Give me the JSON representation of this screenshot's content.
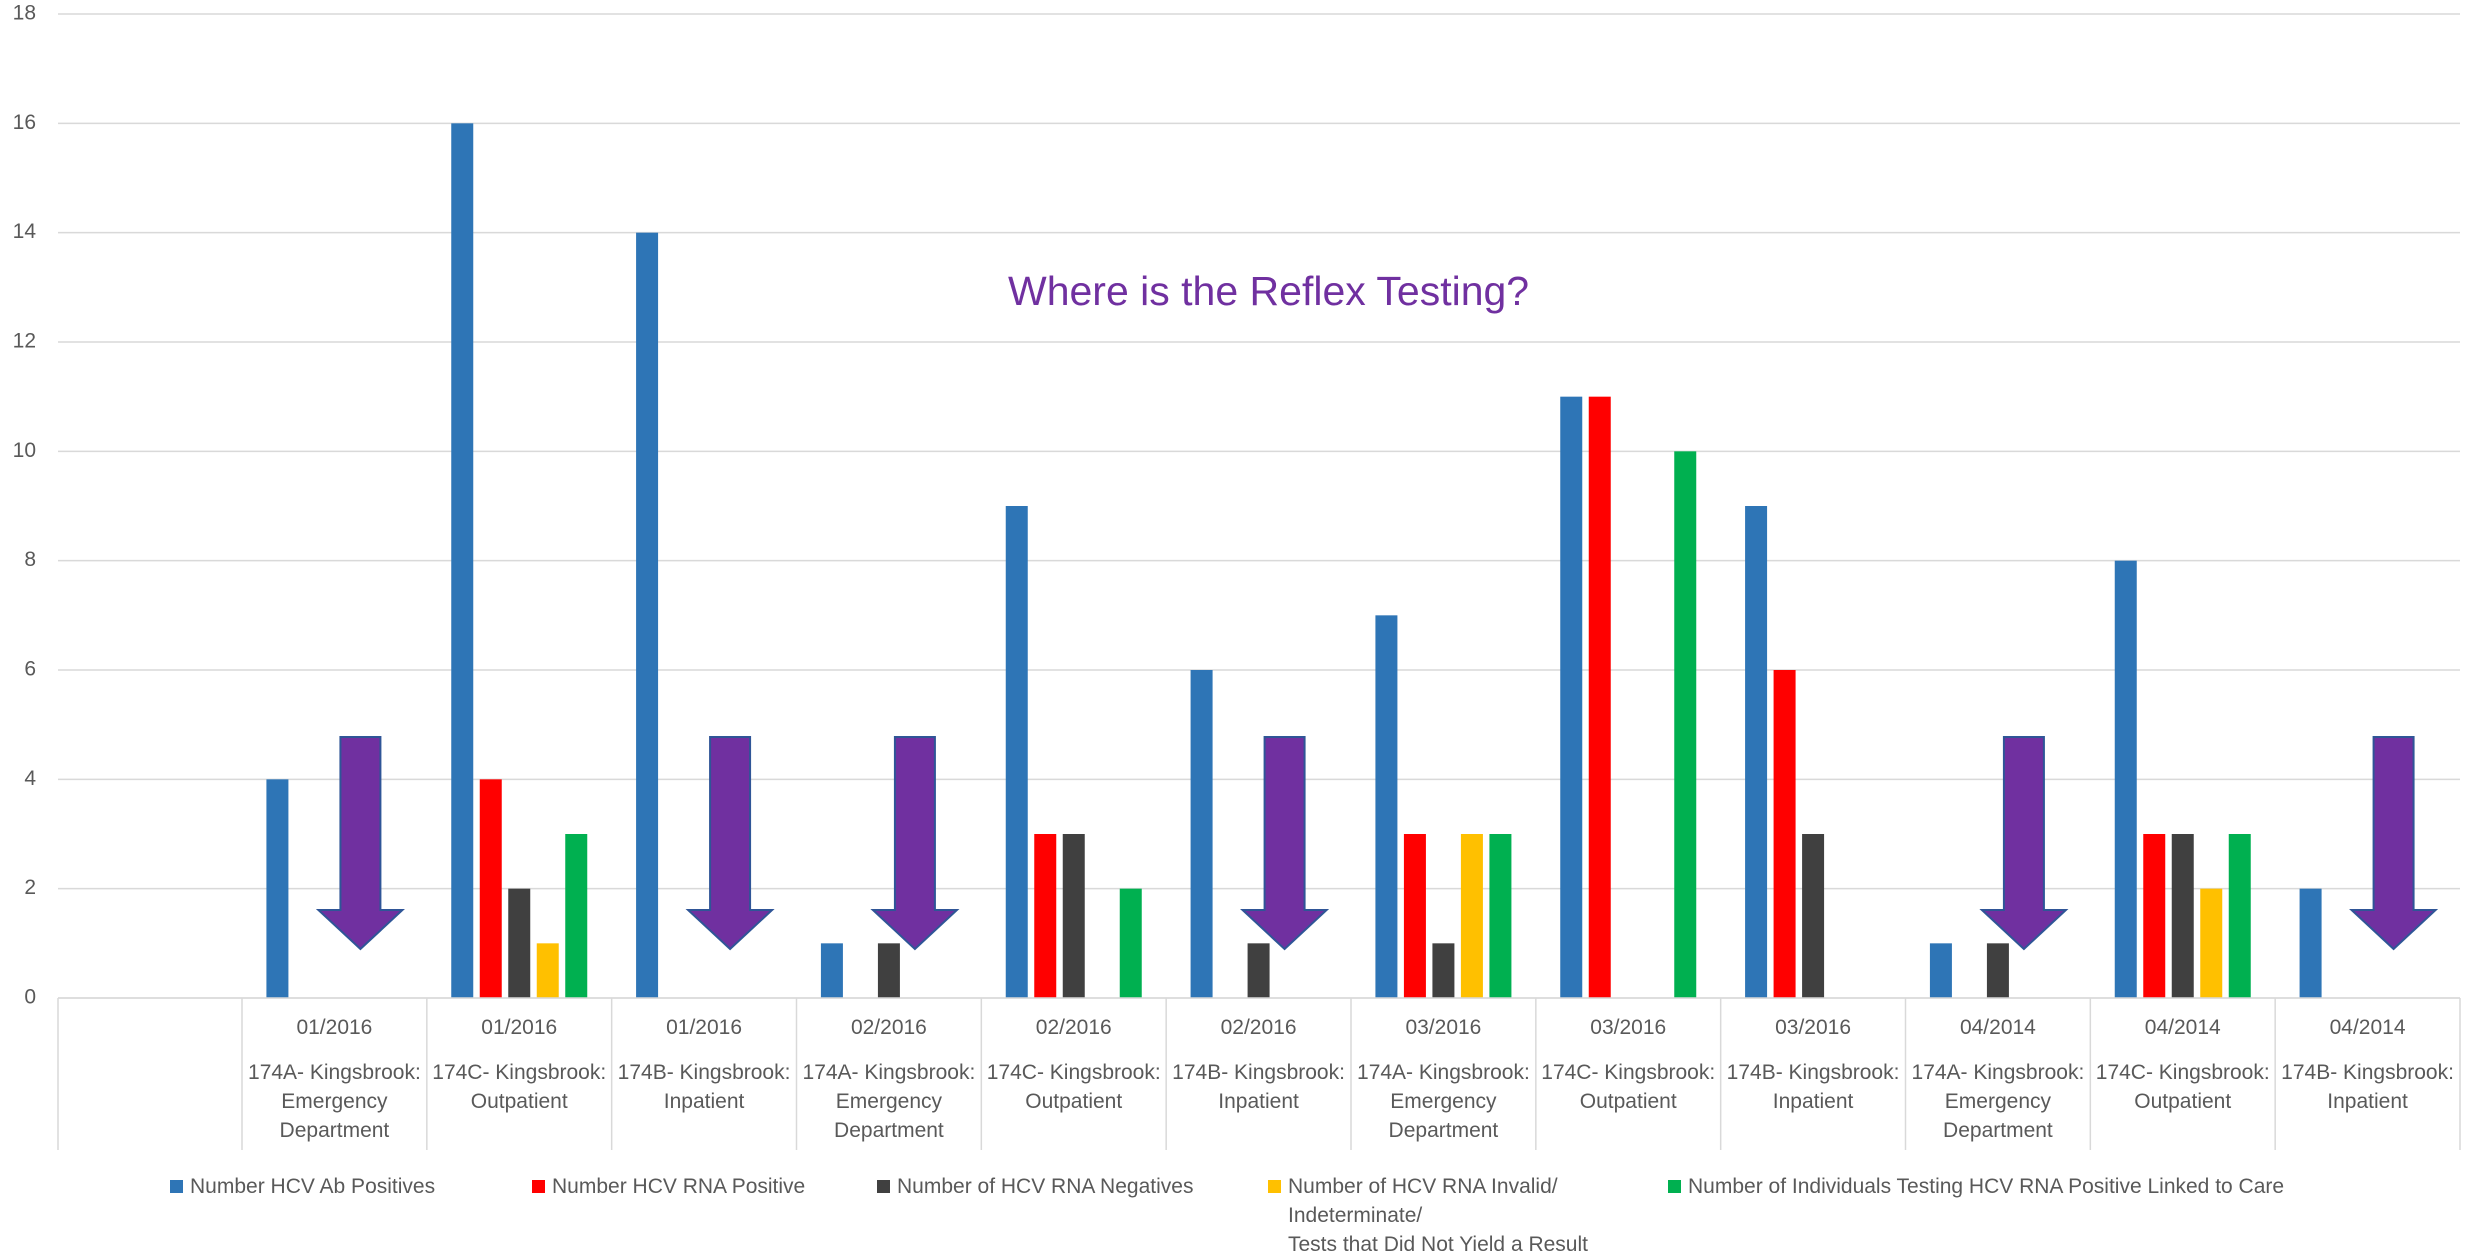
{
  "chart_data": {
    "type": "bar",
    "annotation": "Where is the Reflex Testing?",
    "categories": [
      {
        "date": "01/2016",
        "site": "174A- Kingsbrook: Emergency Department"
      },
      {
        "date": "01/2016",
        "site": "174C- Kingsbrook: Outpatient"
      },
      {
        "date": "01/2016",
        "site": "174B- Kingsbrook: Inpatient"
      },
      {
        "date": "02/2016",
        "site": "174A- Kingsbrook: Emergency Department"
      },
      {
        "date": "02/2016",
        "site": "174C- Kingsbrook: Outpatient"
      },
      {
        "date": "02/2016",
        "site": "174B- Kingsbrook: Inpatient"
      },
      {
        "date": "03/2016",
        "site": "174A- Kingsbrook: Emergency Department"
      },
      {
        "date": "03/2016",
        "site": "174C- Kingsbrook: Outpatient"
      },
      {
        "date": "03/2016",
        "site": "174B- Kingsbrook: Inpatient"
      },
      {
        "date": "04/2014",
        "site": "174A- Kingsbrook: Emergency Department"
      },
      {
        "date": "04/2014",
        "site": "174C- Kingsbrook: Outpatient"
      },
      {
        "date": "04/2014",
        "site": "174B- Kingsbrook: Inpatient"
      }
    ],
    "series": [
      {
        "name": "Number HCV  Ab Positives",
        "color": "#2e75b6",
        "values": [
          4,
          16,
          14,
          1,
          9,
          6,
          7,
          11,
          9,
          1,
          8,
          2
        ]
      },
      {
        "name": "Number HCV RNA Positive",
        "color": "#ff0000",
        "values": [
          null,
          4,
          null,
          null,
          3,
          null,
          3,
          11,
          6,
          null,
          3,
          null
        ]
      },
      {
        "name": "Number of HCV RNA Negatives",
        "color": "#404040",
        "values": [
          null,
          2,
          null,
          1,
          3,
          1,
          1,
          null,
          3,
          1,
          3,
          null
        ]
      },
      {
        "name": "Number of HCV RNA Invalid/\nIndeterminate/\nTests that Did Not Yield a Result",
        "color": "#ffc000",
        "values": [
          null,
          1,
          null,
          null,
          null,
          null,
          3,
          null,
          null,
          null,
          2,
          null
        ]
      },
      {
        "name": "Number of Individuals Testing HCV RNA Positive Linked to Care",
        "color": "#00b050",
        "values": [
          null,
          3,
          null,
          null,
          2,
          null,
          3,
          10,
          null,
          null,
          3,
          null
        ]
      }
    ],
    "ylim": [
      0,
      18
    ],
    "yticks": [
      0,
      2,
      4,
      6,
      8,
      10,
      12,
      14,
      16,
      18
    ],
    "grid": true
  }
}
